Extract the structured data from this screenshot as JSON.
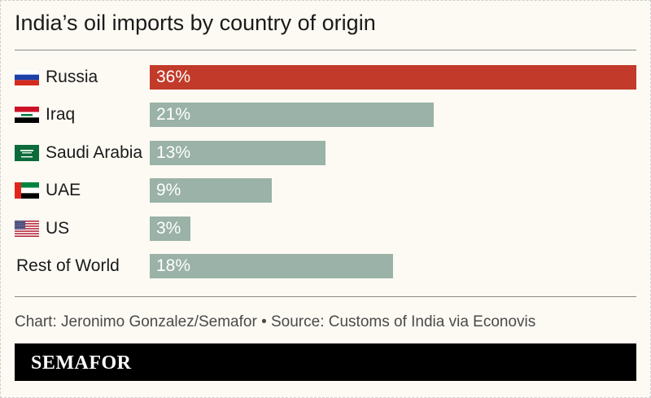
{
  "title": "India’s oil imports by country of origin",
  "credit": "Chart: Jeronimo Gonzalez/Semafor • Source: Customs of India via Econovis",
  "footer": {
    "logo": "SEMAFOR"
  },
  "colors": {
    "highlight": "#c23b2a",
    "default_bar": "#9ab2a7",
    "background": "#fcfaf3"
  },
  "chart_data": {
    "type": "bar",
    "orientation": "horizontal",
    "title": "India’s oil imports by country of origin",
    "categories": [
      "Russia",
      "Iraq",
      "Saudi Arabia",
      "UAE",
      "US",
      "Rest of World"
    ],
    "values": [
      36,
      21,
      13,
      9,
      3,
      18
    ],
    "value_labels": [
      "36%",
      "21%",
      "13%",
      "9%",
      "3%",
      "18%"
    ],
    "unit": "%",
    "flags": [
      "russia-flag",
      "iraq-flag",
      "saudi-arabia-flag",
      "uae-flag",
      "us-flag",
      ""
    ],
    "highlighted": [
      "Russia"
    ],
    "xlim": [
      0,
      36
    ],
    "grid": false,
    "legend": "none"
  }
}
